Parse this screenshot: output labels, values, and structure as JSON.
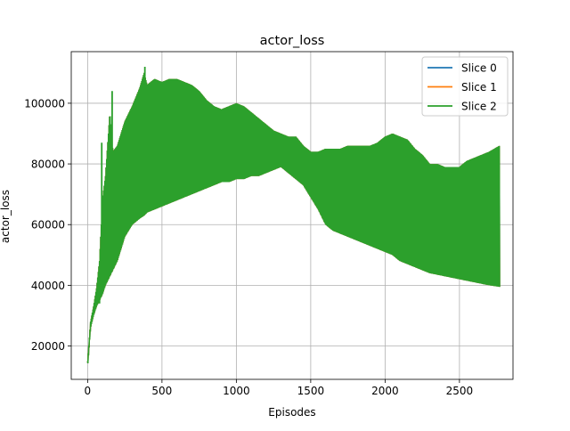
{
  "chart_data": {
    "type": "line",
    "title": "actor_loss",
    "xlabel": "Episodes",
    "ylabel": "actor_loss",
    "xlim": [
      -110,
      2860
    ],
    "ylim": [
      9000,
      117000
    ],
    "x_ticks": [
      0,
      500,
      1000,
      1500,
      2000,
      2500
    ],
    "x_tick_labels": [
      "0",
      "500",
      "1000",
      "1500",
      "2000",
      "2500"
    ],
    "y_ticks": [
      20000,
      40000,
      60000,
      80000,
      100000
    ],
    "y_tick_labels": [
      "20000",
      "40000",
      "60000",
      "80000",
      "100000"
    ],
    "grid": true,
    "legend_position": "top-right",
    "colors": {
      "slice0": "#1f77b4",
      "slice1": "#ff7f0e",
      "slice2": "#2ca02c",
      "grid": "#b0b0b0",
      "axes": "#000000"
    },
    "band_note_upper_lower": "Series oscillate rapidly between an upper and lower envelope; Slice 2 (green) is drawn last and covers Slices 0 and 1.",
    "envelope_x": [
      0,
      20,
      40,
      60,
      80,
      100,
      120,
      150,
      170,
      200,
      250,
      300,
      350,
      380,
      400,
      450,
      500,
      550,
      600,
      650,
      700,
      750,
      800,
      850,
      900,
      950,
      1000,
      1050,
      1100,
      1150,
      1200,
      1250,
      1300,
      1350,
      1400,
      1450,
      1500,
      1550,
      1600,
      1650,
      1700,
      1750,
      1800,
      1850,
      1900,
      1950,
      2000,
      2050,
      2100,
      2150,
      2200,
      2250,
      2300,
      2350,
      2400,
      2450,
      2500,
      2550,
      2600,
      2650,
      2700,
      2770
    ],
    "series": [
      {
        "name": "Slice 0",
        "upper": [
          15000,
          28000,
          33000,
          39000,
          48000,
          68000,
          76000,
          97000,
          84000,
          86000,
          94000,
          99000,
          105000,
          110000,
          106000,
          108000,
          107000,
          108000,
          108000,
          107000,
          106000,
          104000,
          101000,
          99000,
          98000,
          99000,
          100000,
          99000,
          97000,
          95000,
          93000,
          91000,
          90000,
          89000,
          89000,
          86000,
          84000,
          84000,
          85000,
          85000,
          85000,
          86000,
          86000,
          86000,
          86000,
          87000,
          89000,
          90000,
          89000,
          88000,
          85000,
          83000,
          80000,
          80000,
          79000,
          79000,
          79000,
          81000,
          82000,
          83000,
          84000,
          86000
        ],
        "lower": [
          13000,
          26000,
          30000,
          33000,
          35000,
          37000,
          40000,
          43000,
          45000,
          48000,
          56000,
          60000,
          62000,
          63000,
          64000,
          65000,
          66000,
          67000,
          68000,
          69000,
          70000,
          71000,
          72000,
          73000,
          74000,
          74000,
          75000,
          75000,
          76000,
          76000,
          77000,
          78000,
          79000,
          77000,
          75000,
          73000,
          69000,
          65000,
          60000,
          58000,
          57000,
          56000,
          55000,
          54000,
          53000,
          52000,
          51000,
          50000,
          48000,
          47000,
          46000,
          45000,
          44000,
          43500,
          43000,
          42500,
          42000,
          41500,
          41000,
          40500,
          40000,
          39500
        ]
      },
      {
        "name": "Slice 1",
        "upper": [
          15000,
          28000,
          33000,
          39000,
          48000,
          68000,
          76000,
          97000,
          84000,
          86000,
          94000,
          99000,
          105000,
          110000,
          106000,
          108000,
          107000,
          108000,
          108000,
          107000,
          106000,
          104000,
          101000,
          99000,
          98000,
          99000,
          100000,
          99000,
          97000,
          95000,
          93000,
          91000,
          90000,
          89000,
          89000,
          86000,
          84000,
          84000,
          85000,
          85000,
          85000,
          86000,
          86000,
          86000,
          86000,
          87000,
          89000,
          90000,
          89000,
          88000,
          85000,
          83000,
          80000,
          80000,
          79000,
          79000,
          79000,
          81000,
          82000,
          83000,
          84000,
          86000
        ],
        "lower": [
          13000,
          26000,
          30000,
          33000,
          35000,
          37000,
          40000,
          43000,
          45000,
          48000,
          56000,
          60000,
          62000,
          63000,
          64000,
          65000,
          66000,
          67000,
          68000,
          69000,
          70000,
          71000,
          72000,
          73000,
          74000,
          74000,
          75000,
          75000,
          76000,
          76000,
          77000,
          78000,
          79000,
          77000,
          75000,
          73000,
          69000,
          65000,
          60000,
          58000,
          57000,
          56000,
          55000,
          54000,
          53000,
          52000,
          51000,
          50000,
          48000,
          47000,
          46000,
          45000,
          44000,
          43500,
          43000,
          42500,
          42000,
          41500,
          41000,
          40500,
          40000,
          39500
        ]
      },
      {
        "name": "Slice 2",
        "upper": [
          15000,
          28000,
          33000,
          39000,
          48000,
          68000,
          76000,
          97000,
          84000,
          86000,
          94000,
          99000,
          105000,
          110000,
          106000,
          108000,
          107000,
          108000,
          108000,
          107000,
          106000,
          104000,
          101000,
          99000,
          98000,
          99000,
          100000,
          99000,
          97000,
          95000,
          93000,
          91000,
          90000,
          89000,
          89000,
          86000,
          84000,
          84000,
          85000,
          85000,
          85000,
          86000,
          86000,
          86000,
          86000,
          87000,
          89000,
          90000,
          89000,
          88000,
          85000,
          83000,
          80000,
          80000,
          79000,
          79000,
          79000,
          81000,
          82000,
          83000,
          84000,
          86000
        ],
        "lower": [
          13000,
          26000,
          30000,
          33000,
          35000,
          37000,
          40000,
          43000,
          45000,
          48000,
          56000,
          60000,
          62000,
          63000,
          64000,
          65000,
          66000,
          67000,
          68000,
          69000,
          70000,
          71000,
          72000,
          73000,
          74000,
          74000,
          75000,
          75000,
          76000,
          76000,
          77000,
          78000,
          79000,
          77000,
          75000,
          73000,
          69000,
          65000,
          60000,
          58000,
          57000,
          56000,
          55000,
          54000,
          53000,
          52000,
          51000,
          50000,
          48000,
          47000,
          46000,
          45000,
          44000,
          43500,
          43000,
          42500,
          42000,
          41500,
          41000,
          40500,
          40000,
          39500
        ]
      }
    ],
    "spikes": [
      {
        "x": 95,
        "y": 87000
      },
      {
        "x": 165,
        "y": 104000
      },
      {
        "x": 385,
        "y": 112000
      },
      {
        "x": 80,
        "y": 34000
      }
    ]
  }
}
